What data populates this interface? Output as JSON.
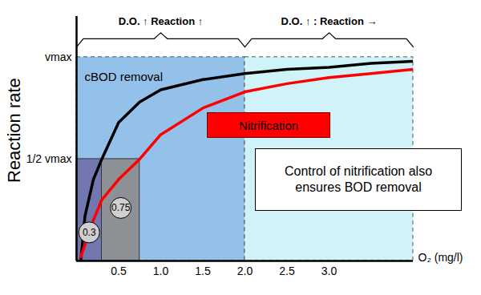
{
  "chart_data": {
    "type": "line",
    "x_label": "O₂ (mg/l)",
    "y_label": "Reaction rate",
    "x": [
      0.05,
      0.1,
      0.2,
      0.3,
      0.5,
      0.75,
      1.0,
      1.5,
      2.0,
      2.5,
      3.0,
      3.5,
      4.0
    ],
    "series": [
      {
        "name": "cBOD removal",
        "color": "#000000",
        "values": [
          0,
          0.22,
          0.4,
          0.5,
          0.68,
          0.78,
          0.84,
          0.89,
          0.92,
          0.94,
          0.95,
          0.97,
          0.98
        ]
      },
      {
        "name": "Nitrification",
        "color": "#ff0000",
        "values": [
          0.02,
          0.08,
          0.2,
          0.3,
          0.4,
          0.5,
          0.62,
          0.75,
          0.83,
          0.87,
          0.9,
          0.92,
          0.94
        ]
      }
    ],
    "xlim": [
      0,
      4
    ],
    "xticks": [
      {
        "value": 0.5,
        "label": "0.5"
      },
      {
        "value": 1,
        "label": "1.0"
      },
      {
        "value": 1.5,
        "label": "1.5"
      },
      {
        "value": 2,
        "label": "2.0"
      },
      {
        "value": 2.5,
        "label": "2.5"
      },
      {
        "value": 3,
        "label": "3.0"
      }
    ],
    "ylim": [
      0,
      1.2
    ],
    "yticks": [
      {
        "value": 0.5,
        "label": "1/2 vmax"
      },
      {
        "value": 1,
        "label": "vmax"
      }
    ],
    "regions": [
      {
        "x1": 0,
        "x2": 2,
        "y2": 1,
        "color": "#94c1ea",
        "label": "D.O. ↑ Reaction ↑"
      },
      {
        "x1": 2,
        "x2": 4,
        "y2": 1,
        "color": "#cff3f8",
        "label": "D.O. ↑ : Reaction →"
      }
    ],
    "half_vmax": 0.5,
    "half_saturation": [
      {
        "value": 0.3,
        "color": "#6e70a8"
      },
      {
        "value": 0.75,
        "color": "#8c8c8c"
      }
    ],
    "note": "Control of nitrification also ensures BOD removal",
    "legend": false,
    "grid": false
  }
}
